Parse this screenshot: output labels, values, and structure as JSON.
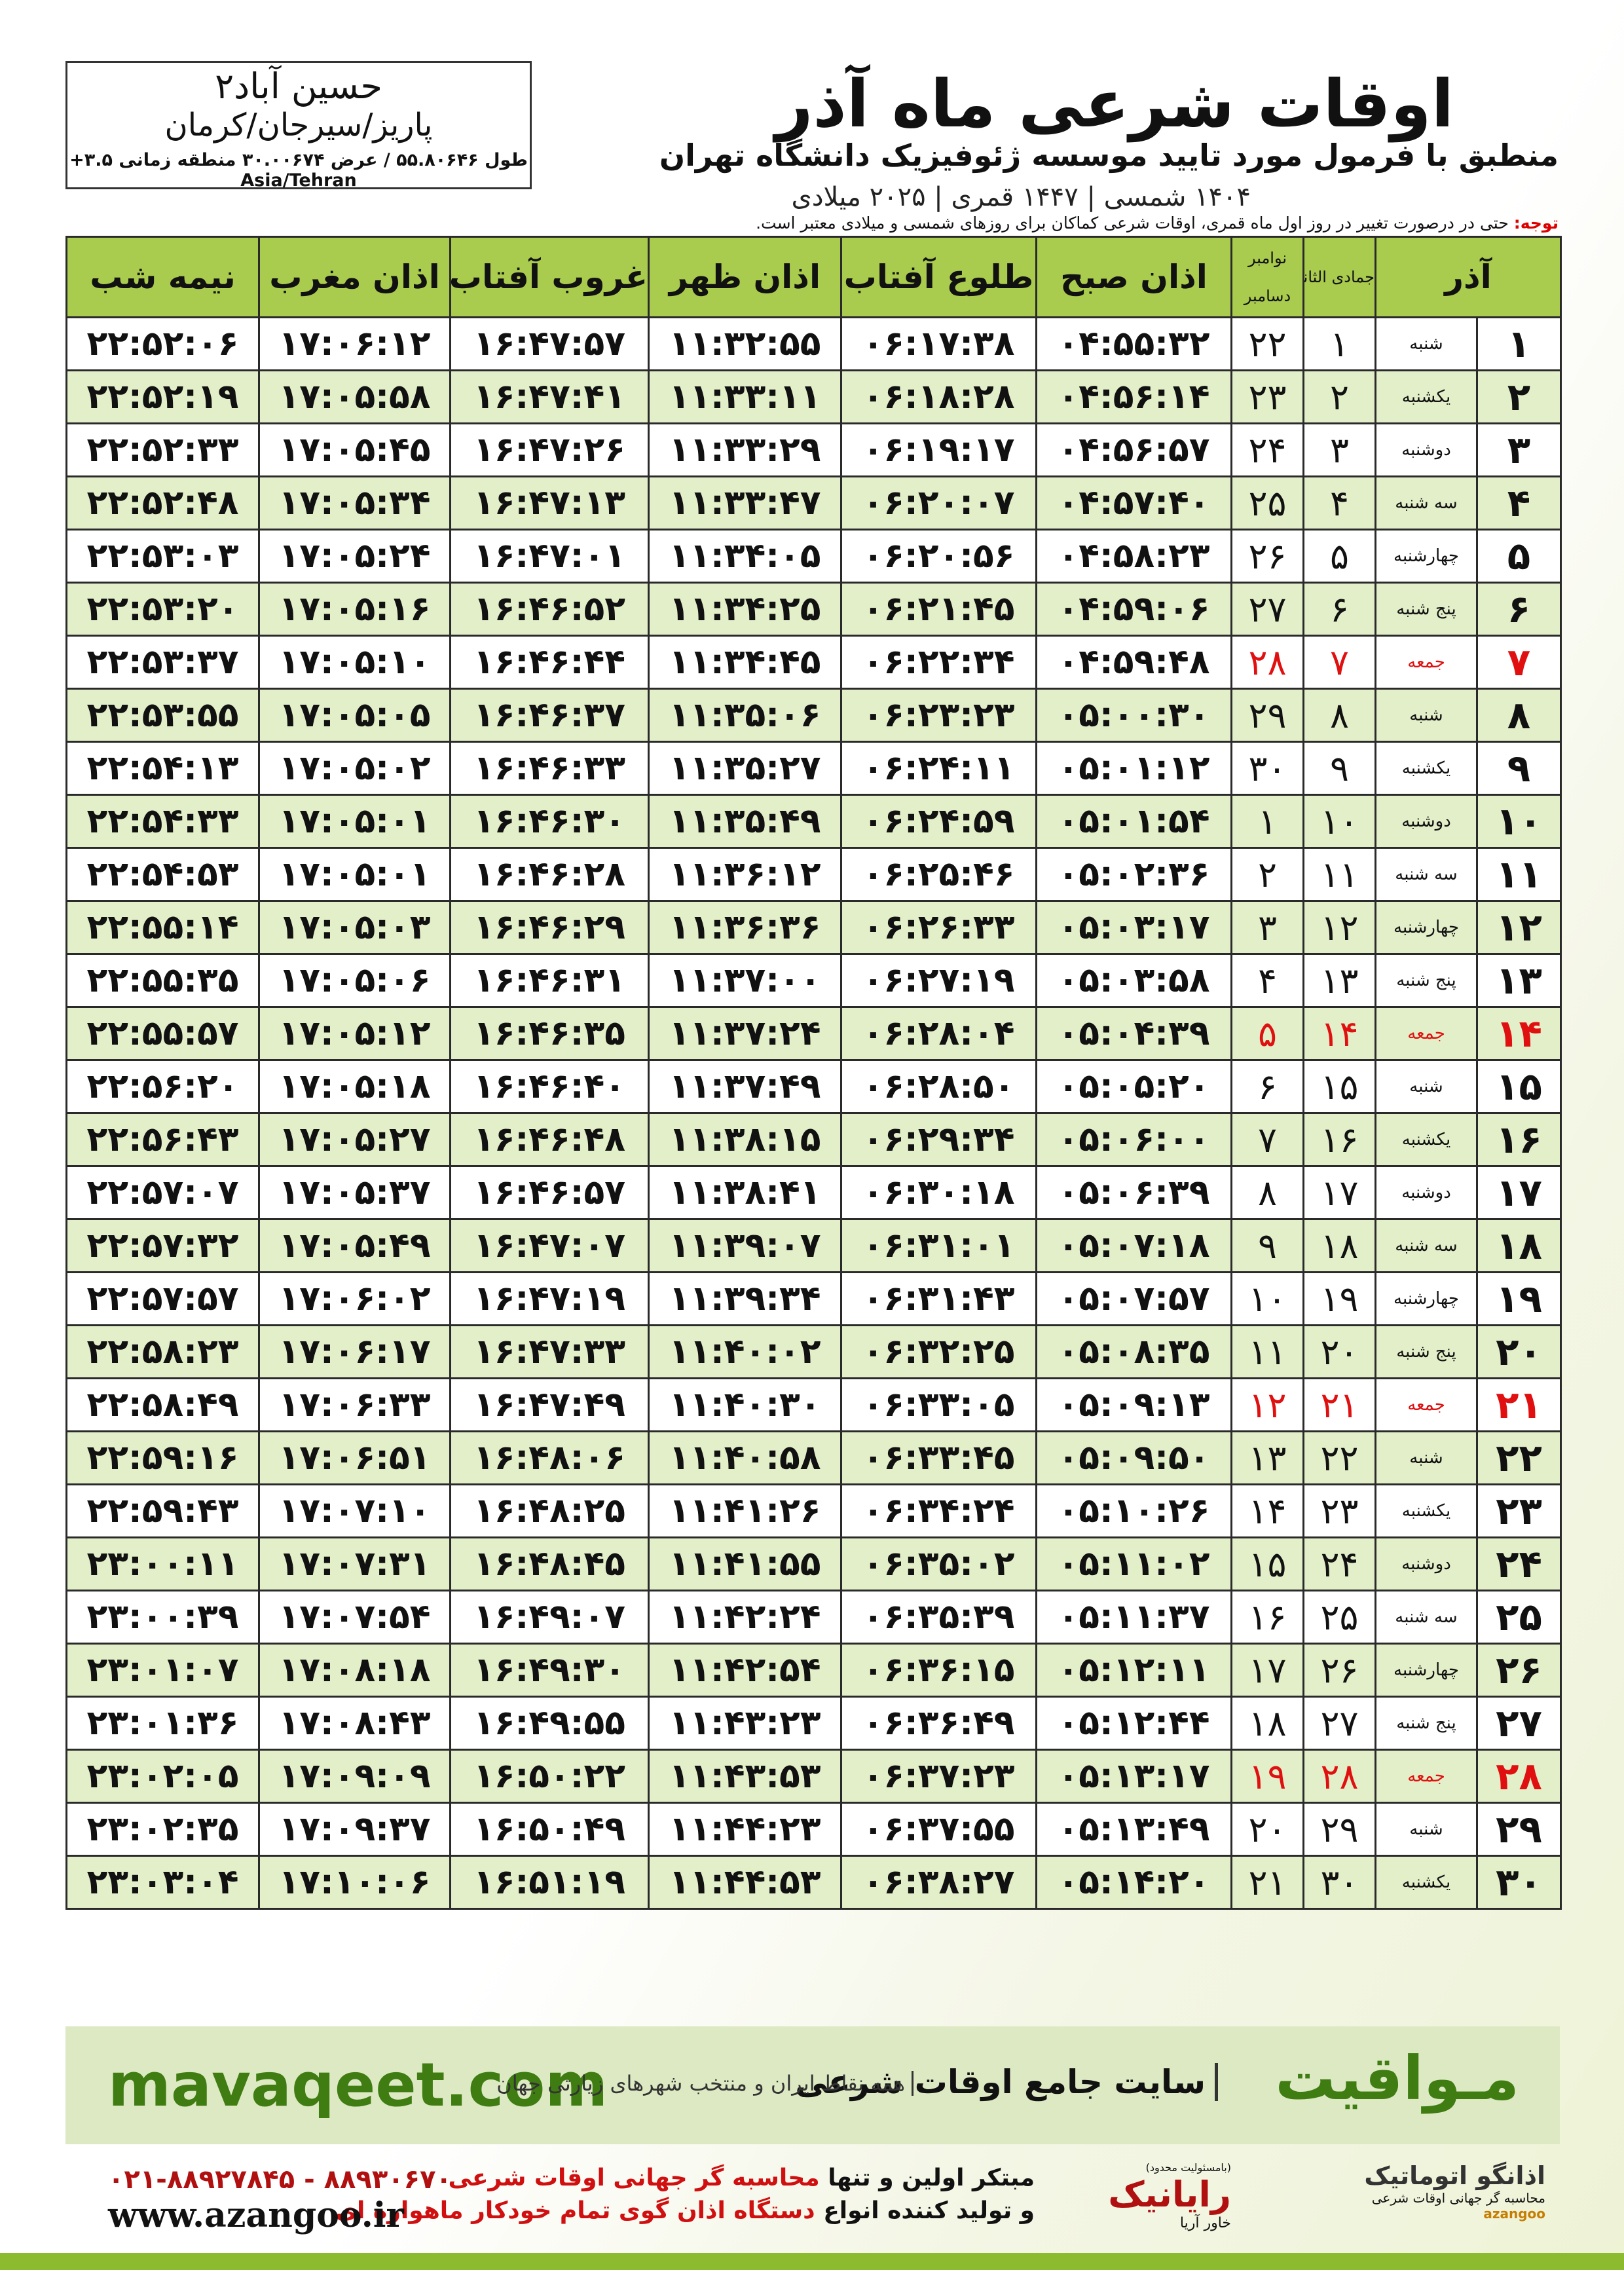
{
  "header": {
    "title": "اوقات شرعی ماه آذر",
    "subtitle": "منطبق با فرمول مورد تایید موسسه ژئوفیزیک دانشگاه تهران",
    "dates": "۱۴۰۴ شمسی | ۱۴۴۷ قمری | ۲۰۲۵ میلادی"
  },
  "location": {
    "name": "حسین آباد۲",
    "region": "پاریز/سیرجان/کرمان",
    "coords": "طول ۵۵.۸۰۶۴۶ / عرض ۳۰.۰۰۶۷۴ منطقه زمانی ۳.۵+ Asia/Tehran"
  },
  "note": {
    "label": "توجه:",
    "text": "حتی در درصورت تغییر در روز اول ماه قمری، اوقات شرعی کماکان برای روزهای شمسی و میلادی معتبر است."
  },
  "table": {
    "headers": {
      "month": "آذر",
      "hijri": "جمادی الثانی",
      "greg_top": "نوامبر",
      "greg_bottom": "دسامبر",
      "times": [
        "اذان صبح",
        "طلوع آفتاب",
        "اذان ظهر",
        "غروب آفتاب",
        "اذان مغرب",
        "نیمه شب"
      ]
    },
    "rows": [
      {
        "cells": [
          "۱",
          "شنبه",
          "۱",
          "۲۲",
          "۰۴:۵۵:۳۲",
          "۰۶:۱۷:۳۸",
          "۱۱:۳۲:۵۵",
          "۱۶:۴۷:۵۷",
          "۱۷:۰۶:۱۲",
          "۲۲:۵۲:۰۶"
        ]
      },
      {
        "cells": [
          "۲",
          "یکشنبه",
          "۲",
          "۲۳",
          "۰۴:۵۶:۱۴",
          "۰۶:۱۸:۲۸",
          "۱۱:۳۳:۱۱",
          "۱۶:۴۷:۴۱",
          "۱۷:۰۵:۵۸",
          "۲۲:۵۲:۱۹"
        ]
      },
      {
        "cells": [
          "۳",
          "دوشنبه",
          "۳",
          "۲۴",
          "۰۴:۵۶:۵۷",
          "۰۶:۱۹:۱۷",
          "۱۱:۳۳:۲۹",
          "۱۶:۴۷:۲۶",
          "۱۷:۰۵:۴۵",
          "۲۲:۵۲:۳۳"
        ]
      },
      {
        "cells": [
          "۴",
          "سه شنبه",
          "۴",
          "۲۵",
          "۰۴:۵۷:۴۰",
          "۰۶:۲۰:۰۷",
          "۱۱:۳۳:۴۷",
          "۱۶:۴۷:۱۳",
          "۱۷:۰۵:۳۴",
          "۲۲:۵۲:۴۸"
        ]
      },
      {
        "cells": [
          "۵",
          "چهارشنبه",
          "۵",
          "۲۶",
          "۰۴:۵۸:۲۳",
          "۰۶:۲۰:۵۶",
          "۱۱:۳۴:۰۵",
          "۱۶:۴۷:۰۱",
          "۱۷:۰۵:۲۴",
          "۲۲:۵۳:۰۳"
        ]
      },
      {
        "cells": [
          "۶",
          "پنج شنبه",
          "۶",
          "۲۷",
          "۰۴:۵۹:۰۶",
          "۰۶:۲۱:۴۵",
          "۱۱:۳۴:۲۵",
          "۱۶:۴۶:۵۲",
          "۱۷:۰۵:۱۶",
          "۲۲:۵۳:۲۰"
        ]
      },
      {
        "cells": [
          "۷",
          "جمعه",
          "۷",
          "۲۸",
          "۰۴:۵۹:۴۸",
          "۰۶:۲۲:۳۴",
          "۱۱:۳۴:۴۵",
          "۱۶:۴۶:۴۴",
          "۱۷:۰۵:۱۰",
          "۲۲:۵۳:۳۷"
        ],
        "red": true
      },
      {
        "cells": [
          "۸",
          "شنبه",
          "۸",
          "۲۹",
          "۰۵:۰۰:۳۰",
          "۰۶:۲۳:۲۳",
          "۱۱:۳۵:۰۶",
          "۱۶:۴۶:۳۷",
          "۱۷:۰۵:۰۵",
          "۲۲:۵۳:۵۵"
        ]
      },
      {
        "cells": [
          "۹",
          "یکشنبه",
          "۹",
          "۳۰",
          "۰۵:۰۱:۱۲",
          "۰۶:۲۴:۱۱",
          "۱۱:۳۵:۲۷",
          "۱۶:۴۶:۳۳",
          "۱۷:۰۵:۰۲",
          "۲۲:۵۴:۱۳"
        ]
      },
      {
        "cells": [
          "۱۰",
          "دوشنبه",
          "۱۰",
          "۱",
          "۰۵:۰۱:۵۴",
          "۰۶:۲۴:۵۹",
          "۱۱:۳۵:۴۹",
          "۱۶:۴۶:۳۰",
          "۱۷:۰۵:۰۱",
          "۲۲:۵۴:۳۳"
        ]
      },
      {
        "cells": [
          "۱۱",
          "سه شنبه",
          "۱۱",
          "۲",
          "۰۵:۰۲:۳۶",
          "۰۶:۲۵:۴۶",
          "۱۱:۳۶:۱۲",
          "۱۶:۴۶:۲۸",
          "۱۷:۰۵:۰۱",
          "۲۲:۵۴:۵۳"
        ]
      },
      {
        "cells": [
          "۱۲",
          "چهارشنبه",
          "۱۲",
          "۳",
          "۰۵:۰۳:۱۷",
          "۰۶:۲۶:۳۳",
          "۱۱:۳۶:۳۶",
          "۱۶:۴۶:۲۹",
          "۱۷:۰۵:۰۳",
          "۲۲:۵۵:۱۴"
        ]
      },
      {
        "cells": [
          "۱۳",
          "پنج شنبه",
          "۱۳",
          "۴",
          "۰۵:۰۳:۵۸",
          "۰۶:۲۷:۱۹",
          "۱۱:۳۷:۰۰",
          "۱۶:۴۶:۳۱",
          "۱۷:۰۵:۰۶",
          "۲۲:۵۵:۳۵"
        ]
      },
      {
        "cells": [
          "۱۴",
          "جمعه",
          "۱۴",
          "۵",
          "۰۵:۰۴:۳۹",
          "۰۶:۲۸:۰۴",
          "۱۱:۳۷:۲۴",
          "۱۶:۴۶:۳۵",
          "۱۷:۰۵:۱۲",
          "۲۲:۵۵:۵۷"
        ],
        "red": true
      },
      {
        "cells": [
          "۱۵",
          "شنبه",
          "۱۵",
          "۶",
          "۰۵:۰۵:۲۰",
          "۰۶:۲۸:۵۰",
          "۱۱:۳۷:۴۹",
          "۱۶:۴۶:۴۰",
          "۱۷:۰۵:۱۸",
          "۲۲:۵۶:۲۰"
        ]
      },
      {
        "cells": [
          "۱۶",
          "یکشنبه",
          "۱۶",
          "۷",
          "۰۵:۰۶:۰۰",
          "۰۶:۲۹:۳۴",
          "۱۱:۳۸:۱۵",
          "۱۶:۴۶:۴۸",
          "۱۷:۰۵:۲۷",
          "۲۲:۵۶:۴۳"
        ]
      },
      {
        "cells": [
          "۱۷",
          "دوشنبه",
          "۱۷",
          "۸",
          "۰۵:۰۶:۳۹",
          "۰۶:۳۰:۱۸",
          "۱۱:۳۸:۴۱",
          "۱۶:۴۶:۵۷",
          "۱۷:۰۵:۳۷",
          "۲۲:۵۷:۰۷"
        ]
      },
      {
        "cells": [
          "۱۸",
          "سه شنبه",
          "۱۸",
          "۹",
          "۰۵:۰۷:۱۸",
          "۰۶:۳۱:۰۱",
          "۱۱:۳۹:۰۷",
          "۱۶:۴۷:۰۷",
          "۱۷:۰۵:۴۹",
          "۲۲:۵۷:۳۲"
        ]
      },
      {
        "cells": [
          "۱۹",
          "چهارشنبه",
          "۱۹",
          "۱۰",
          "۰۵:۰۷:۵۷",
          "۰۶:۳۱:۴۳",
          "۱۱:۳۹:۳۴",
          "۱۶:۴۷:۱۹",
          "۱۷:۰۶:۰۲",
          "۲۲:۵۷:۵۷"
        ]
      },
      {
        "cells": [
          "۲۰",
          "پنج شنبه",
          "۲۰",
          "۱۱",
          "۰۵:۰۸:۳۵",
          "۰۶:۳۲:۲۵",
          "۱۱:۴۰:۰۲",
          "۱۶:۴۷:۳۳",
          "۱۷:۰۶:۱۷",
          "۲۲:۵۸:۲۳"
        ]
      },
      {
        "cells": [
          "۲۱",
          "جمعه",
          "۲۱",
          "۱۲",
          "۰۵:۰۹:۱۳",
          "۰۶:۳۳:۰۵",
          "۱۱:۴۰:۳۰",
          "۱۶:۴۷:۴۹",
          "۱۷:۰۶:۳۳",
          "۲۲:۵۸:۴۹"
        ],
        "red": true
      },
      {
        "cells": [
          "۲۲",
          "شنبه",
          "۲۲",
          "۱۳",
          "۰۵:۰۹:۵۰",
          "۰۶:۳۳:۴۵",
          "۱۱:۴۰:۵۸",
          "۱۶:۴۸:۰۶",
          "۱۷:۰۶:۵۱",
          "۲۲:۵۹:۱۶"
        ]
      },
      {
        "cells": [
          "۲۳",
          "یکشنبه",
          "۲۳",
          "۱۴",
          "۰۵:۱۰:۲۶",
          "۰۶:۳۴:۲۴",
          "۱۱:۴۱:۲۶",
          "۱۶:۴۸:۲۵",
          "۱۷:۰۷:۱۰",
          "۲۲:۵۹:۴۳"
        ]
      },
      {
        "cells": [
          "۲۴",
          "دوشنبه",
          "۲۴",
          "۱۵",
          "۰۵:۱۱:۰۲",
          "۰۶:۳۵:۰۲",
          "۱۱:۴۱:۵۵",
          "۱۶:۴۸:۴۵",
          "۱۷:۰۷:۳۱",
          "۲۳:۰۰:۱۱"
        ]
      },
      {
        "cells": [
          "۲۵",
          "سه شنبه",
          "۲۵",
          "۱۶",
          "۰۵:۱۱:۳۷",
          "۰۶:۳۵:۳۹",
          "۱۱:۴۲:۲۴",
          "۱۶:۴۹:۰۷",
          "۱۷:۰۷:۵۴",
          "۲۳:۰۰:۳۹"
        ]
      },
      {
        "cells": [
          "۲۶",
          "چهارشنبه",
          "۲۶",
          "۱۷",
          "۰۵:۱۲:۱۱",
          "۰۶:۳۶:۱۵",
          "۱۱:۴۲:۵۴",
          "۱۶:۴۹:۳۰",
          "۱۷:۰۸:۱۸",
          "۲۳:۰۱:۰۷"
        ]
      },
      {
        "cells": [
          "۲۷",
          "پنج شنبه",
          "۲۷",
          "۱۸",
          "۰۵:۱۲:۴۴",
          "۰۶:۳۶:۴۹",
          "۱۱:۴۳:۲۳",
          "۱۶:۴۹:۵۵",
          "۱۷:۰۸:۴۳",
          "۲۳:۰۱:۳۶"
        ]
      },
      {
        "cells": [
          "۲۸",
          "جمعه",
          "۲۸",
          "۱۹",
          "۰۵:۱۳:۱۷",
          "۰۶:۳۷:۲۳",
          "۱۱:۴۳:۵۳",
          "۱۶:۵۰:۲۲",
          "۱۷:۰۹:۰۹",
          "۲۳:۰۲:۰۵"
        ],
        "red": true
      },
      {
        "cells": [
          "۲۹",
          "شنبه",
          "۲۹",
          "۲۰",
          "۰۵:۱۳:۴۹",
          "۰۶:۳۷:۵۵",
          "۱۱:۴۴:۲۳",
          "۱۶:۵۰:۴۹",
          "۱۷:۰۹:۳۷",
          "۲۳:۰۲:۳۵"
        ]
      },
      {
        "cells": [
          "۳۰",
          "یکشنبه",
          "۳۰",
          "۲۱",
          "۰۵:۱۴:۲۰",
          "۰۶:۳۸:۲۷",
          "۱۱:۴۴:۵۳",
          "۱۶:۵۱:۱۹",
          "۱۷:۱۰:۰۶",
          "۲۳:۰۳:۰۴"
        ]
      }
    ]
  },
  "footer": {
    "brand": "مـواقیت",
    "site_desc": "سایت جامع اوقات شرعی",
    "site_sub": "همه نقاط ایران و منتخب شهرهای زیارتی جهان",
    "url": "mavaqeet.com",
    "line1_a": "مبتکر اولین و تنها",
    "line1_b": "محاسبه گر جهانی اوقات شرعی",
    "line2_a": "و تولید کننده انواع",
    "line2_b": "دستگاه اذان گوی تمام خودکار ماهواره ای",
    "phone": "۰۲۱-۸۸۹۲۷۸۴۵ - ۸۸۹۳۰۶۷۰",
    "web": "www.azangoo.ir",
    "logo1": "رایانیک",
    "logo1_sub": "خاور آریا",
    "logo1_note": "(بامسئولیت محدود)",
    "logo2": "اذانگو اتوماتیک",
    "logo2_sub": "محاسبه گر جهانی اوقات شرعی",
    "logo2_en": "azangoo"
  }
}
